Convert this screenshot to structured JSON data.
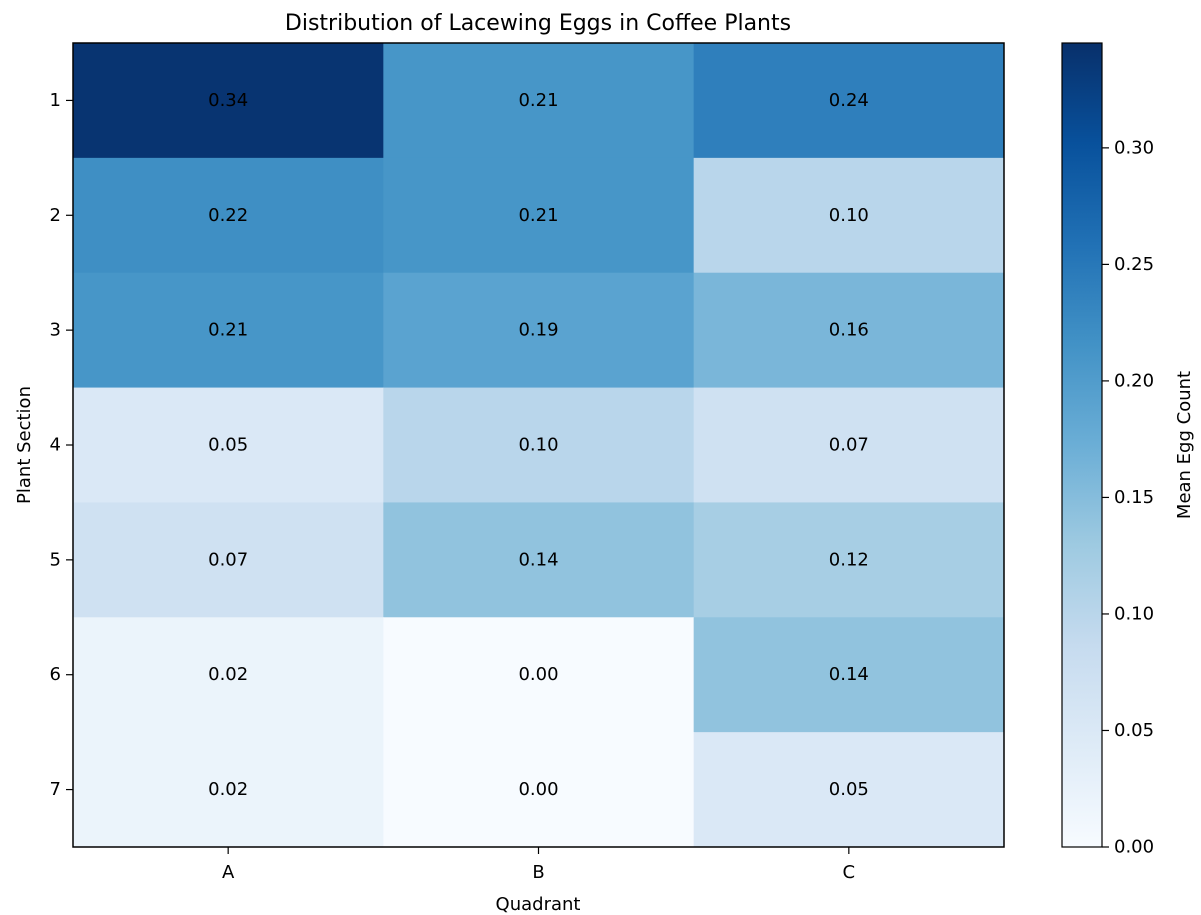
{
  "chart_data": {
    "type": "heatmap",
    "title": "Distribution of Lacewing Eggs in Coffee Plants",
    "xlabel": "Quadrant",
    "ylabel": "Plant Section",
    "x_categories": [
      "A",
      "B",
      "C"
    ],
    "y_categories": [
      "1",
      "2",
      "3",
      "4",
      "5",
      "6",
      "7"
    ],
    "values": [
      [
        0.34,
        0.21,
        0.24
      ],
      [
        0.22,
        0.21,
        0.1
      ],
      [
        0.21,
        0.19,
        0.16
      ],
      [
        0.05,
        0.1,
        0.07
      ],
      [
        0.07,
        0.14,
        0.12
      ],
      [
        0.02,
        0.0,
        0.14
      ],
      [
        0.02,
        0.0,
        0.05
      ]
    ],
    "value_labels": [
      [
        "0.34",
        "0.21",
        "0.24"
      ],
      [
        "0.22",
        "0.21",
        "0.10"
      ],
      [
        "0.21",
        "0.19",
        "0.16"
      ],
      [
        "0.05",
        "0.10",
        "0.07"
      ],
      [
        "0.07",
        "0.14",
        "0.12"
      ],
      [
        "0.02",
        "0.00",
        "0.14"
      ],
      [
        "0.02",
        "0.00",
        "0.05"
      ]
    ],
    "colormap": "Blues",
    "color_range": [
      0,
      0.345
    ],
    "colorbar": {
      "label": "Mean Egg Count",
      "ticks": [
        0.0,
        0.05,
        0.1,
        0.15,
        0.2,
        0.25,
        0.3
      ],
      "tick_labels": [
        "0.00",
        "0.05",
        "0.10",
        "0.15",
        "0.20",
        "0.25",
        "0.30"
      ]
    },
    "grid": false
  }
}
